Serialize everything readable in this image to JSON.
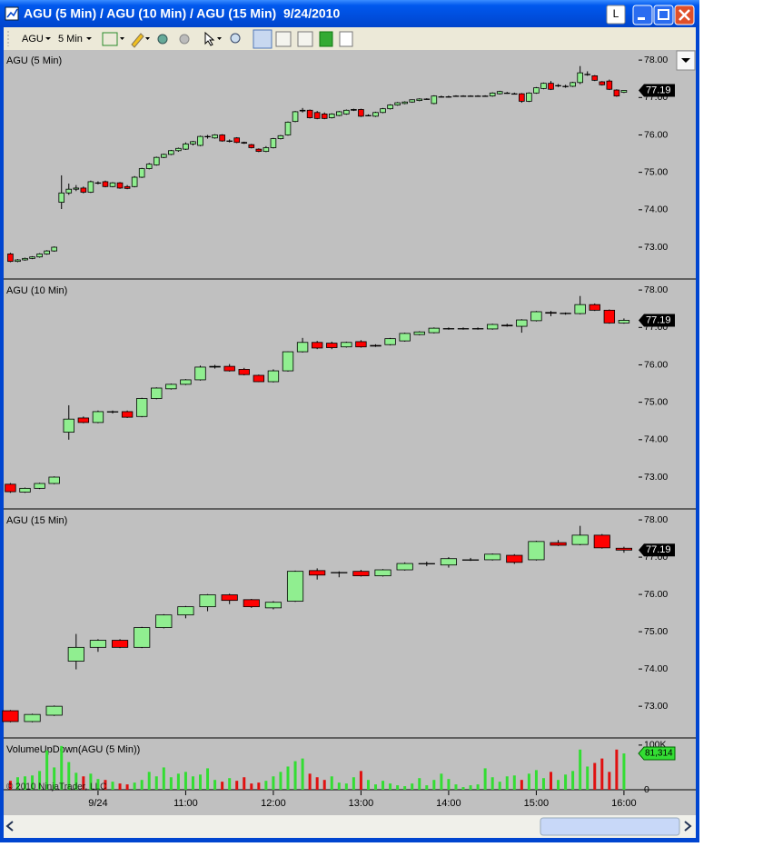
{
  "window": {
    "title": "AGU (5 Min) / AGU (10 Min) / AGU (15 Min)  9/24/2010",
    "button": "L"
  },
  "toolbar": {
    "instrument": "AGU",
    "interval": "5 Min"
  },
  "copyright": "© 2010 NinjaTrader, LLC",
  "chart_data": [
    {
      "type": "candlestick",
      "title": "AGU (5 Min)",
      "up_color": "#90ee90",
      "down_color": "#ff0000",
      "ylim": [
        72.15,
        78.27
      ],
      "yticks": [
        {
          "value": 73,
          "label": "73.00"
        },
        {
          "value": 74,
          "label": "74.00"
        },
        {
          "value": 75,
          "label": "75.00"
        },
        {
          "value": 76,
          "label": "76.00"
        },
        {
          "value": 77,
          "label": "77.00"
        },
        {
          "value": 78,
          "label": "78.00"
        }
      ],
      "last_price": 77.19,
      "x": [
        540,
        545,
        550,
        555,
        560,
        565,
        570,
        575,
        580,
        585,
        590,
        595,
        600,
        605,
        610,
        615,
        620,
        625,
        630,
        635,
        640,
        645,
        650,
        655,
        660,
        665,
        670,
        675,
        680,
        685,
        690,
        695,
        700,
        705,
        710,
        715,
        720,
        725,
        730,
        735,
        740,
        745,
        750,
        755,
        760,
        765,
        770,
        775,
        780,
        785,
        790,
        795,
        800,
        805,
        810,
        815,
        820,
        825,
        830,
        835,
        840,
        845,
        850,
        855,
        860,
        865,
        870,
        875,
        880,
        885,
        890,
        895,
        900,
        905,
        910,
        915,
        920,
        925,
        930,
        935,
        940,
        945,
        950,
        955,
        960
      ],
      "open": [
        72.82,
        72.62,
        72.66,
        72.7,
        72.74,
        72.82,
        72.9,
        74.2,
        74.45,
        74.55,
        74.58,
        74.47,
        74.72,
        74.75,
        74.62,
        74.72,
        74.62,
        74.62,
        74.87,
        75.1,
        75.2,
        75.4,
        75.48,
        75.58,
        75.62,
        75.76,
        75.72,
        75.95,
        75.92,
        76.0,
        75.84,
        75.92,
        75.8,
        75.74,
        75.62,
        75.56,
        75.66,
        75.9,
        76.0,
        76.36,
        76.64,
        76.66,
        76.6,
        76.56,
        76.46,
        76.52,
        76.56,
        76.66,
        76.68,
        76.52,
        76.5,
        76.6,
        76.7,
        76.8,
        76.84,
        76.88,
        76.92,
        76.96,
        76.84,
        77.02,
        77.02,
        77.04,
        77.04,
        77.04,
        77.04,
        77.04,
        77.04,
        77.1,
        77.12,
        77.1,
        77.1,
        76.9,
        77.12,
        77.24,
        77.38,
        77.32,
        77.3,
        77.3,
        77.4,
        77.62,
        77.58,
        77.42,
        77.44,
        77.2,
        77.14
      ],
      "high": [
        72.85,
        72.68,
        72.72,
        72.76,
        72.84,
        72.92,
        73.02,
        74.92,
        74.7,
        74.66,
        74.62,
        74.78,
        74.76,
        74.78,
        74.74,
        74.74,
        74.66,
        74.9,
        75.12,
        75.25,
        75.42,
        75.5,
        75.6,
        75.66,
        75.8,
        75.84,
        75.98,
        76.0,
        76.02,
        76.02,
        75.88,
        75.94,
        75.82,
        75.76,
        75.64,
        75.7,
        75.92,
        76.0,
        76.36,
        76.64,
        76.72,
        76.68,
        76.64,
        76.6,
        76.58,
        76.64,
        76.68,
        76.7,
        76.7,
        76.55,
        76.62,
        76.72,
        76.82,
        76.88,
        76.9,
        76.95,
        76.98,
        76.98,
        77.06,
        77.05,
        77.05,
        77.06,
        77.06,
        77.06,
        77.06,
        77.06,
        77.14,
        77.18,
        77.15,
        77.13,
        77.12,
        77.14,
        77.28,
        77.4,
        77.44,
        77.36,
        77.34,
        77.42,
        77.84,
        77.7,
        77.6,
        77.44,
        77.48,
        77.22,
        77.2
      ],
      "low": [
        72.6,
        72.6,
        72.64,
        72.68,
        72.72,
        72.8,
        72.88,
        74.02,
        74.4,
        74.5,
        74.44,
        74.45,
        74.68,
        74.6,
        74.6,
        74.56,
        74.55,
        74.6,
        74.85,
        75.08,
        75.18,
        75.38,
        75.46,
        75.55,
        75.6,
        75.72,
        75.7,
        75.9,
        75.9,
        75.82,
        75.8,
        75.78,
        75.76,
        75.64,
        75.54,
        75.54,
        75.64,
        75.88,
        75.98,
        76.34,
        76.6,
        76.44,
        76.42,
        76.42,
        76.44,
        76.5,
        76.54,
        76.64,
        76.48,
        76.5,
        76.48,
        76.58,
        76.68,
        76.78,
        76.82,
        76.86,
        76.9,
        76.94,
        76.82,
        77.0,
        77.0,
        77.02,
        77.02,
        77.02,
        77.02,
        77.02,
        77.02,
        77.08,
        77.1,
        77.08,
        76.86,
        76.88,
        77.1,
        77.22,
        77.2,
        77.28,
        77.26,
        77.28,
        77.36,
        77.58,
        77.44,
        77.32,
        77.2,
        77.02,
        77.12
      ],
      "close": [
        72.62,
        72.66,
        72.7,
        72.74,
        72.82,
        72.9,
        73.0,
        74.45,
        74.55,
        74.58,
        74.47,
        74.75,
        74.72,
        74.62,
        74.72,
        74.58,
        74.57,
        74.87,
        75.1,
        75.22,
        75.4,
        75.48,
        75.58,
        75.64,
        75.76,
        75.82,
        75.96,
        75.96,
        76.0,
        75.84,
        75.84,
        75.8,
        75.78,
        75.66,
        75.56,
        75.66,
        75.9,
        75.98,
        76.34,
        76.62,
        76.66,
        76.46,
        76.44,
        76.44,
        76.56,
        76.62,
        76.66,
        76.68,
        76.5,
        76.52,
        76.6,
        76.7,
        76.8,
        76.86,
        76.88,
        76.94,
        76.96,
        76.96,
        77.04,
        77.02,
        77.02,
        77.04,
        77.04,
        77.04,
        77.04,
        77.04,
        77.12,
        77.16,
        77.12,
        77.1,
        76.9,
        77.12,
        77.26,
        77.38,
        77.22,
        77.32,
        77.3,
        77.4,
        77.66,
        77.62,
        77.46,
        77.34,
        77.22,
        77.04,
        77.19
      ]
    },
    {
      "type": "candlestick",
      "title": "AGU (10 Min)",
      "up_color": "#90ee90",
      "down_color": "#ff0000",
      "ylim": [
        72.15,
        78.27
      ],
      "yticks": [
        {
          "value": 73,
          "label": "73.00"
        },
        {
          "value": 74,
          "label": "74.00"
        },
        {
          "value": 75,
          "label": "75.00"
        },
        {
          "value": 76,
          "label": "76.00"
        },
        {
          "value": 77,
          "label": "77.00"
        },
        {
          "value": 78,
          "label": "78.00"
        }
      ],
      "last_price": 77.19,
      "x": [
        540,
        550,
        560,
        570,
        580,
        590,
        600,
        610,
        620,
        630,
        640,
        650,
        660,
        670,
        680,
        690,
        700,
        710,
        720,
        730,
        740,
        750,
        760,
        770,
        780,
        790,
        800,
        810,
        820,
        830,
        840,
        850,
        860,
        870,
        880,
        890,
        900,
        910,
        920,
        930,
        940,
        950,
        960
      ],
      "open": [
        72.81,
        72.6,
        72.7,
        72.83,
        74.2,
        74.58,
        74.46,
        74.74,
        74.75,
        74.62,
        75.1,
        75.36,
        75.48,
        75.6,
        75.94,
        75.96,
        75.88,
        75.72,
        75.55,
        75.84,
        76.35,
        76.6,
        76.58,
        76.48,
        76.62,
        76.52,
        76.54,
        76.64,
        76.81,
        76.86,
        76.96,
        76.97,
        76.96,
        76.96,
        77.06,
        77.03,
        77.18,
        77.4,
        77.38,
        77.37,
        77.61,
        77.46,
        77.12
      ],
      "high": [
        72.84,
        72.72,
        72.85,
        73.02,
        74.92,
        74.62,
        74.78,
        74.78,
        74.78,
        75.12,
        75.4,
        75.5,
        75.62,
        75.98,
        76.0,
        76.02,
        75.92,
        75.74,
        75.88,
        76.36,
        76.72,
        76.64,
        76.62,
        76.62,
        76.66,
        76.55,
        76.72,
        76.86,
        76.9,
        77.0,
        77.0,
        77.0,
        77.0,
        77.1,
        77.1,
        77.22,
        77.44,
        77.44,
        77.4,
        77.84,
        77.64,
        77.48,
        77.24
      ],
      "low": [
        72.58,
        72.58,
        72.68,
        72.81,
        74.0,
        74.44,
        74.44,
        74.7,
        74.58,
        74.6,
        75.08,
        75.34,
        75.46,
        75.58,
        75.9,
        75.82,
        75.72,
        75.54,
        75.53,
        75.82,
        76.33,
        76.42,
        76.42,
        76.46,
        76.46,
        76.48,
        76.52,
        76.62,
        76.79,
        76.84,
        76.94,
        76.94,
        76.94,
        76.94,
        77.02,
        76.86,
        77.16,
        77.3,
        77.34,
        77.35,
        77.44,
        77.1,
        77.1
      ],
      "close": [
        72.61,
        72.7,
        72.83,
        73.0,
        74.55,
        74.46,
        74.75,
        74.75,
        74.6,
        75.1,
        75.38,
        75.48,
        75.6,
        75.94,
        75.96,
        75.84,
        75.74,
        75.55,
        75.84,
        76.35,
        76.6,
        76.45,
        76.46,
        76.6,
        76.48,
        76.5,
        76.7,
        76.84,
        76.88,
        76.98,
        76.97,
        76.97,
        76.97,
        77.08,
        77.04,
        77.2,
        77.42,
        77.38,
        77.37,
        77.61,
        77.46,
        77.12,
        77.19
      ]
    },
    {
      "type": "candlestick",
      "title": "AGU (15 Min)",
      "up_color": "#90ee90",
      "down_color": "#ff0000",
      "ylim": [
        72.15,
        78.27
      ],
      "yticks": [
        {
          "value": 73,
          "label": "73.00"
        },
        {
          "value": 74,
          "label": "74.00"
        },
        {
          "value": 75,
          "label": "75.00"
        },
        {
          "value": 76,
          "label": "76.00"
        },
        {
          "value": 77,
          "label": "77.00"
        },
        {
          "value": 78,
          "label": "78.00"
        }
      ],
      "last_price": 77.19,
      "x": [
        540,
        555,
        570,
        585,
        600,
        615,
        630,
        645,
        660,
        675,
        690,
        705,
        720,
        735,
        750,
        765,
        780,
        795,
        810,
        825,
        840,
        855,
        870,
        885,
        900,
        915,
        930,
        945,
        960
      ],
      "open": [
        72.88,
        72.59,
        72.76,
        74.21,
        74.58,
        74.77,
        74.58,
        75.11,
        75.45,
        75.67,
        75.99,
        75.86,
        75.64,
        75.82,
        76.64,
        76.59,
        76.62,
        76.5,
        76.66,
        76.83,
        76.79,
        76.93,
        76.93,
        77.05,
        76.93,
        77.39,
        77.34,
        77.59,
        77.24
      ],
      "high": [
        72.9,
        72.8,
        73.02,
        74.94,
        74.8,
        74.8,
        75.13,
        75.47,
        75.69,
        76.01,
        76.02,
        75.88,
        75.82,
        76.64,
        76.7,
        76.62,
        76.66,
        76.68,
        76.86,
        76.88,
        77.0,
        76.98,
        77.1,
        77.08,
        77.44,
        77.46,
        77.84,
        77.62,
        77.28
      ],
      "low": [
        72.57,
        72.57,
        72.74,
        73.99,
        74.46,
        74.56,
        74.56,
        75.09,
        75.36,
        75.55,
        75.74,
        75.64,
        75.6,
        75.8,
        76.4,
        76.46,
        76.48,
        76.48,
        76.64,
        76.76,
        76.72,
        76.9,
        76.91,
        76.82,
        76.91,
        77.3,
        77.32,
        77.23,
        77.12
      ],
      "close": [
        72.59,
        72.78,
        73.0,
        74.58,
        74.77,
        74.58,
        75.11,
        75.45,
        75.67,
        75.99,
        75.84,
        75.67,
        75.79,
        76.62,
        76.52,
        76.59,
        76.5,
        76.66,
        76.83,
        76.83,
        76.96,
        76.93,
        77.08,
        76.86,
        77.42,
        77.32,
        77.59,
        77.25,
        77.19
      ]
    },
    {
      "type": "bar",
      "title": "VolumeUpDown(AGU (5 Min))",
      "up_color": "#33dd33",
      "down_color": "#e01010",
      "ylim": [
        0,
        114000
      ],
      "yticks": [
        0,
        {
          "value": 100000,
          "label": "100K"
        }
      ],
      "last_value": {
        "value": 81314,
        "label": "81,314"
      },
      "xlim": [
        536,
        970
      ],
      "xticks": [
        {
          "value": 600,
          "label": "9/24"
        },
        {
          "value": 660,
          "label": "11:00"
        },
        {
          "value": 720,
          "label": "12:00"
        },
        {
          "value": 780,
          "label": "13:00"
        },
        {
          "value": 840,
          "label": "14:00"
        },
        {
          "value": 900,
          "label": "15:00"
        },
        {
          "value": 960,
          "label": "16:00"
        }
      ],
      "x": [
        540,
        545,
        550,
        555,
        560,
        565,
        570,
        575,
        580,
        585,
        590,
        595,
        600,
        605,
        610,
        615,
        620,
        625,
        630,
        635,
        640,
        645,
        650,
        655,
        660,
        665,
        670,
        675,
        680,
        685,
        690,
        695,
        700,
        705,
        710,
        715,
        720,
        725,
        730,
        735,
        740,
        745,
        750,
        755,
        760,
        765,
        770,
        775,
        780,
        785,
        790,
        795,
        800,
        805,
        810,
        815,
        820,
        825,
        830,
        835,
        840,
        845,
        850,
        855,
        860,
        865,
        870,
        875,
        880,
        885,
        890,
        895,
        900,
        905,
        910,
        915,
        920,
        925,
        930,
        935,
        940,
        945,
        950,
        955,
        960
      ],
      "values": [
        20000,
        28000,
        30000,
        32000,
        42000,
        88000,
        50000,
        98000,
        62000,
        38000,
        30000,
        36000,
        24000,
        22000,
        18000,
        14000,
        12000,
        16000,
        22000,
        40000,
        30000,
        50000,
        28000,
        36000,
        40000,
        30000,
        34000,
        48000,
        22000,
        18000,
        26000,
        20000,
        28000,
        14000,
        16000,
        20000,
        30000,
        40000,
        52000,
        64000,
        70000,
        36000,
        28000,
        22000,
        30000,
        16000,
        14000,
        28000,
        42000,
        22000,
        12000,
        20000,
        14000,
        10000,
        8000,
        14000,
        26000,
        10000,
        22000,
        36000,
        24000,
        12000,
        6000,
        10000,
        12000,
        48000,
        28000,
        18000,
        30000,
        32000,
        22000,
        36000,
        44000,
        26000,
        40000,
        22000,
        34000,
        42000,
        90000,
        52000,
        60000,
        70000,
        40000,
        90000,
        81314
      ]
    }
  ]
}
